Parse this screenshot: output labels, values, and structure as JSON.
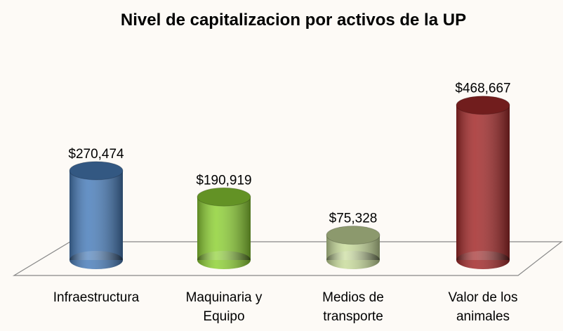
{
  "chart_data": {
    "type": "bar",
    "title": "Nivel de capitalizacion por activos de la UP",
    "categories": [
      "Infraestructura",
      "Maquinaria y Equipo",
      "Medios de transporte",
      "Valor de los animales"
    ],
    "values": [
      270474,
      190919,
      75328,
      468667
    ],
    "value_labels": [
      "$270,474",
      "$190,919",
      "$75,328",
      "$468,667"
    ],
    "colors": [
      "#4a7ebb",
      "#8fd136",
      "#c9dc9c",
      "#a32a2a"
    ]
  }
}
